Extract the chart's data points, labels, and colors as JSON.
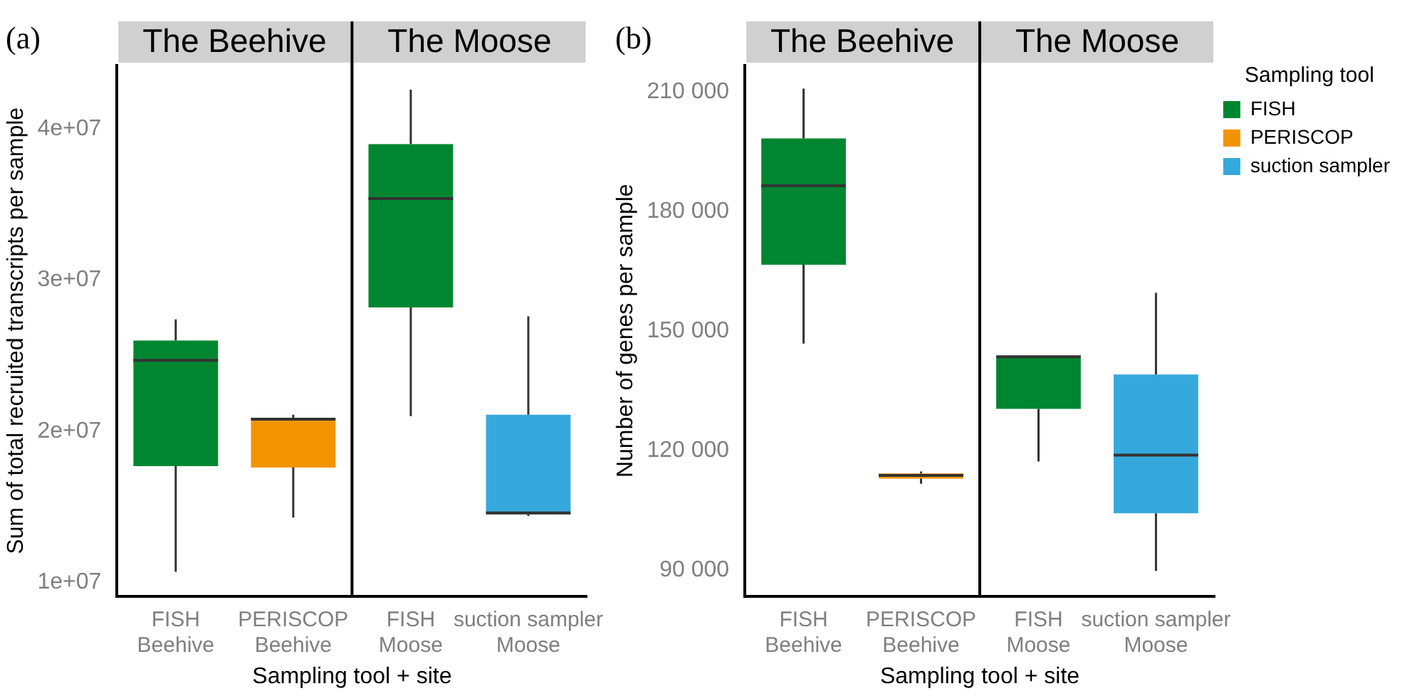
{
  "chart_data": [
    {
      "type": "box",
      "xlabel": "Sampling tool + site",
      "ylabel": "Sum of total recruited transcripts per sample",
      "annotations": [
        "(a)",
        "The Beehive",
        "The Moose"
      ],
      "categories": [
        "FISH\nBeehive",
        "PERISCOP\nBeehive",
        "FISH\nMoose",
        "suction sampler\nMoose"
      ],
      "series": [
        {
          "color": "#008631",
          "boxes": [
            {
              "low": 10700000,
              "q1": 17700000,
              "median": 24700000,
              "q3": 26000000,
              "high": 27400000
            },
            null,
            {
              "low": 21000000,
              "q1": 28200000,
              "median": 35400000,
              "q3": 39000000,
              "high": 42600000
            },
            null
          ]
        },
        {
          "color": "#f29400",
          "boxes": [
            null,
            {
              "low": 14300000,
              "q1": 17600000,
              "median": 20800000,
              "q3": 20900000,
              "high": 21100000
            },
            null,
            null
          ]
        },
        {
          "color": "#36a9dc",
          "boxes": [
            null,
            null,
            null,
            {
              "low": 14400000,
              "q1": 14500000,
              "median": 14600000,
              "q3": 21100000,
              "high": 27600000
            }
          ]
        }
      ],
      "ylim": [
        9100000,
        44200000
      ],
      "yticks": [
        {
          "value": 10000000,
          "label": "1e+07"
        },
        {
          "value": 20000000,
          "label": "2e+07"
        },
        {
          "value": 30000000,
          "label": "3e+07"
        },
        {
          "value": 40000000,
          "label": "4e+07"
        }
      ],
      "grid": false,
      "legend": false
    },
    {
      "type": "box",
      "xlabel": "Sampling tool + site",
      "ylabel": "Number of genes per sample",
      "annotations": [
        "(b)",
        "The Beehive",
        "The Moose"
      ],
      "legend_title": "Sampling tool",
      "categories": [
        "FISH\nBeehive",
        "PERISCOP\nBeehive",
        "FISH\nMoose",
        "suction sampler\nMoose"
      ],
      "series": [
        {
          "name": "FISH",
          "color": "#008631",
          "boxes": [
            {
              "low": 146900,
              "q1": 166700,
              "median": 186500,
              "q3": 198400,
              "high": 210900
            },
            null,
            {
              "low": 117300,
              "q1": 130500,
              "median": 143600,
              "q3": 143600,
              "high": 143600
            },
            null
          ]
        },
        {
          "name": "PERISCOP",
          "color": "#f29400",
          "boxes": [
            null,
            {
              "low": 111700,
              "q1": 113000,
              "median": 113800,
              "q3": 114300,
              "high": 114800
            },
            null,
            null
          ]
        },
        {
          "name": "suction sampler",
          "color": "#36a9dc",
          "boxes": [
            null,
            null,
            null,
            {
              "low": 89800,
              "q1": 104300,
              "median": 118900,
              "q3": 139100,
              "high": 159600
            }
          ]
        }
      ],
      "ylim": [
        83500,
        216700
      ],
      "yticks": [
        {
          "value": 90000,
          "label": "90 000"
        },
        {
          "value": 120000,
          "label": "120 000"
        },
        {
          "value": 150000,
          "label": "150 000"
        },
        {
          "value": 180000,
          "label": "180 000"
        },
        {
          "value": 210000,
          "label": "210 000"
        }
      ],
      "grid": false,
      "legend": "right"
    }
  ]
}
